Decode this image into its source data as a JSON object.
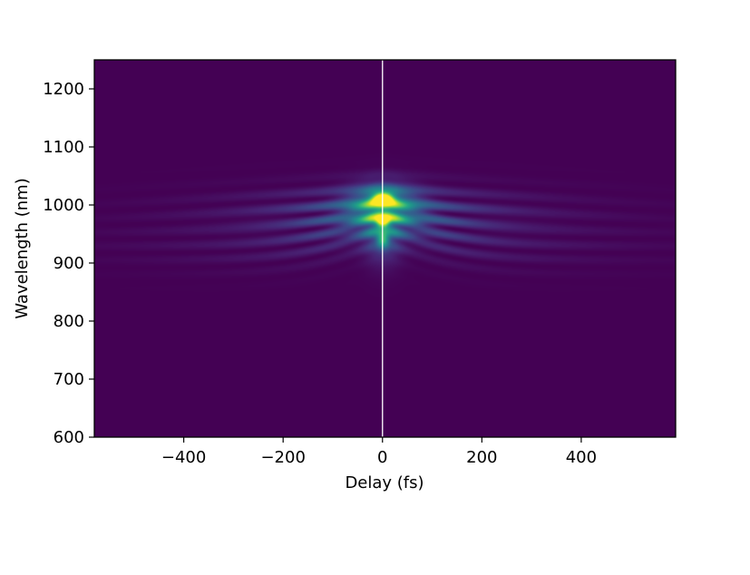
{
  "chart_data": {
    "type": "heatmap",
    "title": "",
    "xlabel": "Delay (fs)",
    "ylabel": "Wavelength (nm)",
    "xlim": [
      -580,
      590
    ],
    "ylim": [
      600,
      1250
    ],
    "x_ticks": [
      -400,
      -200,
      0,
      200,
      400
    ],
    "x_tick_labels": [
      "−400",
      "−200",
      "0",
      "200",
      "400"
    ],
    "y_ticks": [
      600,
      700,
      800,
      900,
      1000,
      1100,
      1200
    ],
    "y_tick_labels": [
      "600",
      "700",
      "800",
      "900",
      "1000",
      "1100",
      "1200"
    ],
    "colormap": "viridis",
    "background_color": "#440154",
    "vertical_line": {
      "x": 0,
      "color": "#ffffff"
    },
    "grid": false,
    "features": [
      {
        "delay": 0,
        "wavelength": 1012,
        "intensity": 1.0,
        "description": "peak"
      },
      {
        "delay": 0,
        "wavelength": 972,
        "intensity": 0.7
      },
      {
        "delay": 0,
        "wavelength": 940,
        "intensity": 0.45
      }
    ],
    "fringe_extent_delay": [
      -330,
      330
    ],
    "fringe_band_wavelength": [
      900,
      1050
    ]
  }
}
